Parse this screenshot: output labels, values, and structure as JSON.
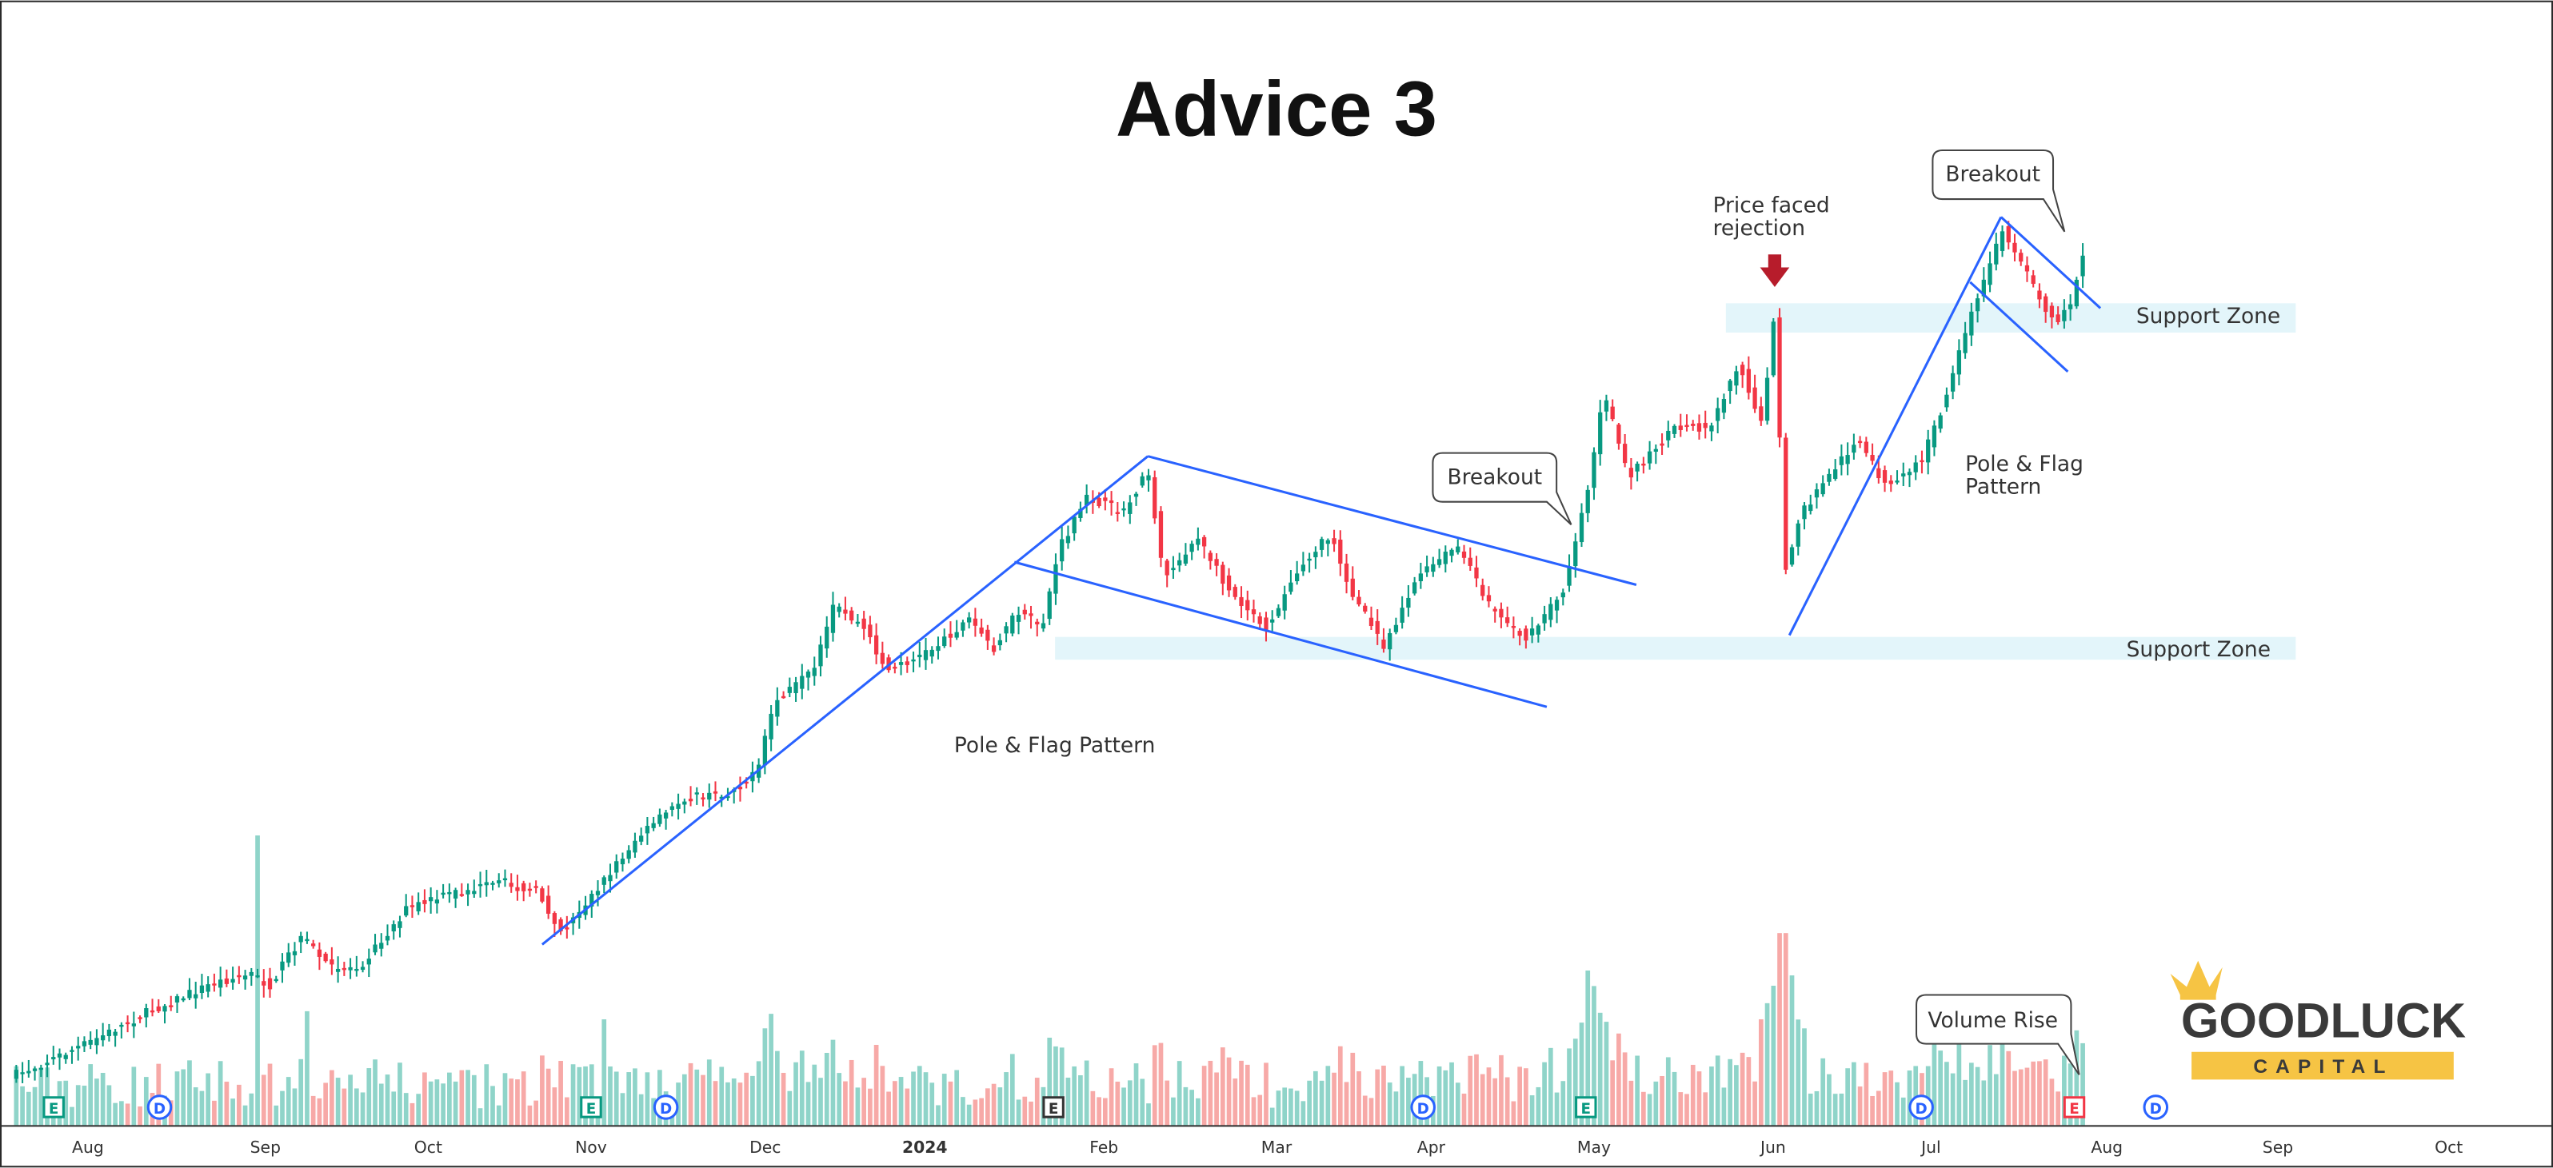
{
  "chart_data": {
    "type": "candlestick",
    "title": "Advice 3",
    "x_axis": {
      "tick_labels": [
        "Aug",
        "Sep",
        "Oct",
        "Nov",
        "Dec",
        "2024",
        "Feb",
        "Mar",
        "Apr",
        "May",
        "Jun",
        "Jul",
        "Aug",
        "Sep",
        "Oct"
      ]
    },
    "grid": false,
    "price_keypoints": [
      {
        "t": 10,
        "v": 660
      },
      {
        "t": 55,
        "v": 640
      },
      {
        "t": 90,
        "v": 622
      },
      {
        "t": 130,
        "v": 604
      },
      {
        "t": 155,
        "v": 598
      },
      {
        "t": 165,
        "v": 606
      },
      {
        "t": 185,
        "v": 575
      },
      {
        "t": 205,
        "v": 596
      },
      {
        "t": 222,
        "v": 592
      },
      {
        "t": 250,
        "v": 558
      },
      {
        "t": 280,
        "v": 548
      },
      {
        "t": 310,
        "v": 542
      },
      {
        "t": 330,
        "v": 548
      },
      {
        "t": 345,
        "v": 572
      },
      {
        "t": 365,
        "v": 548
      },
      {
        "t": 390,
        "v": 516
      },
      {
        "t": 420,
        "v": 490
      },
      {
        "t": 445,
        "v": 488
      },
      {
        "t": 465,
        "v": 475
      },
      {
        "t": 475,
        "v": 432
      },
      {
        "t": 500,
        "v": 412
      },
      {
        "t": 512,
        "v": 372
      },
      {
        "t": 530,
        "v": 385
      },
      {
        "t": 545,
        "v": 412
      },
      {
        "t": 570,
        "v": 400
      },
      {
        "t": 595,
        "v": 380
      },
      {
        "t": 610,
        "v": 398
      },
      {
        "t": 625,
        "v": 376
      },
      {
        "t": 640,
        "v": 385
      },
      {
        "t": 650,
        "v": 338
      },
      {
        "t": 668,
        "v": 305
      },
      {
        "t": 690,
        "v": 315
      },
      {
        "t": 705,
        "v": 288
      },
      {
        "t": 715,
        "v": 355
      },
      {
        "t": 735,
        "v": 330
      },
      {
        "t": 755,
        "v": 362
      },
      {
        "t": 778,
        "v": 385
      },
      {
        "t": 800,
        "v": 345
      },
      {
        "t": 818,
        "v": 328
      },
      {
        "t": 830,
        "v": 365
      },
      {
        "t": 850,
        "v": 396
      },
      {
        "t": 870,
        "v": 355
      },
      {
        "t": 895,
        "v": 335
      },
      {
        "t": 915,
        "v": 372
      },
      {
        "t": 938,
        "v": 393
      },
      {
        "t": 960,
        "v": 362
      },
      {
        "t": 975,
        "v": 300
      },
      {
        "t": 985,
        "v": 242
      },
      {
        "t": 1000,
        "v": 292
      },
      {
        "t": 1030,
        "v": 262
      },
      {
        "t": 1050,
        "v": 262
      },
      {
        "t": 1068,
        "v": 222
      },
      {
        "t": 1082,
        "v": 262
      },
      {
        "t": 1090,
        "v": 188
      },
      {
        "t": 1096,
        "v": 352
      },
      {
        "t": 1106,
        "v": 315
      },
      {
        "t": 1125,
        "v": 290
      },
      {
        "t": 1140,
        "v": 270
      },
      {
        "t": 1160,
        "v": 300
      },
      {
        "t": 1180,
        "v": 282
      },
      {
        "t": 1195,
        "v": 245
      },
      {
        "t": 1210,
        "v": 195
      },
      {
        "t": 1230,
        "v": 140
      },
      {
        "t": 1250,
        "v": 178
      },
      {
        "t": 1262,
        "v": 198
      },
      {
        "t": 1272,
        "v": 185
      },
      {
        "t": 1282,
        "v": 144
      }
    ],
    "volume_spikes": [
      {
        "t": 158,
        "v": 178
      },
      {
        "t": 188,
        "v": 70
      },
      {
        "t": 370,
        "v": 65
      },
      {
        "t": 975,
        "v": 95
      },
      {
        "t": 1095,
        "v": 118
      },
      {
        "t": 1100,
        "v": 92
      }
    ],
    "event_markers": [
      {
        "t": 33,
        "label": "E",
        "color": "#089981"
      },
      {
        "t": 98,
        "label": "D",
        "color": "#2962ff"
      },
      {
        "t": 363,
        "label": "E",
        "color": "#089981"
      },
      {
        "t": 409,
        "label": "D",
        "color": "#2962ff"
      },
      {
        "t": 647,
        "label": "E",
        "color": "#333333"
      },
      {
        "t": 874,
        "label": "D",
        "color": "#2962ff"
      },
      {
        "t": 974,
        "label": "E",
        "color": "#089981"
      },
      {
        "t": 1180,
        "label": "D",
        "color": "#2962ff"
      },
      {
        "t": 1274,
        "label": "E",
        "color": "#f23645"
      },
      {
        "t": 1324,
        "label": "D",
        "color": "#2962ff"
      }
    ],
    "annotations": {
      "pole_flag_1": "Pole & Flag Pattern",
      "pole_flag_2": "Pole & Flag\nPattern",
      "breakout_1": "Breakout",
      "breakout_2": "Breakout",
      "rejection": "Price faced\nrejection",
      "support_1": "Support Zone",
      "support_2": "Support Zone",
      "volume_rise": "Volume Rise"
    },
    "colors": {
      "up": "#089981",
      "down": "#f23645",
      "up_volume": "#8fd4c9",
      "down_volume": "#f7a9a7",
      "trendline": "#2962ff",
      "support_zone": "#e3f5fa",
      "arrow": "#b71c2b"
    }
  },
  "brand": {
    "name": "GOODLUCK",
    "tagline": "CAPITAL",
    "text_color": "#3a3a3a",
    "accent": "#f6c444"
  }
}
